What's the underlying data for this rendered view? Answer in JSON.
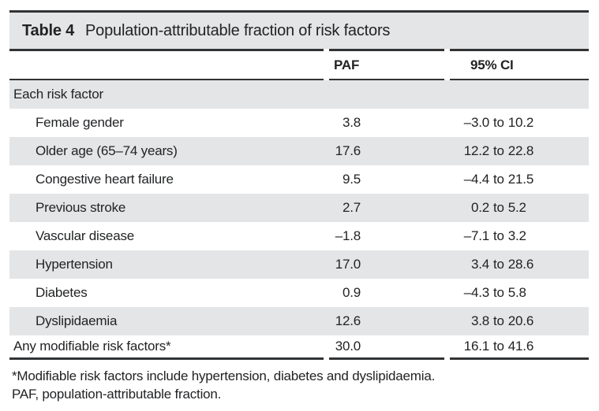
{
  "title": {
    "label": "Table 4",
    "caption": "Population-attributable fraction of risk factors"
  },
  "columns": {
    "paf": "PAF",
    "ci": "95% CI"
  },
  "ci_separator": "to",
  "rows": [
    {
      "label": "Each risk factor",
      "sub": false,
      "paf": "",
      "ci_lo": "",
      "ci_hi": ""
    },
    {
      "label": "Female gender",
      "sub": true,
      "paf": "3.8",
      "ci_lo": "–3.0",
      "ci_hi": "10.2"
    },
    {
      "label": "Older age (65–74 years)",
      "sub": true,
      "paf": "17.6",
      "ci_lo": "12.2",
      "ci_hi": "22.8"
    },
    {
      "label": "Congestive heart failure",
      "sub": true,
      "paf": "9.5",
      "ci_lo": "–4.4",
      "ci_hi": "21.5"
    },
    {
      "label": "Previous stroke",
      "sub": true,
      "paf": "2.7",
      "ci_lo": "0.2",
      "ci_hi": "5.2"
    },
    {
      "label": "Vascular disease",
      "sub": true,
      "paf": "–1.8",
      "ci_lo": "–7.1",
      "ci_hi": "3.2"
    },
    {
      "label": "Hypertension",
      "sub": true,
      "paf": "17.0",
      "ci_lo": "3.4",
      "ci_hi": "28.6"
    },
    {
      "label": "Diabetes",
      "sub": true,
      "paf": "0.9",
      "ci_lo": "–4.3",
      "ci_hi": "5.8"
    },
    {
      "label": "Dyslipidaemia",
      "sub": true,
      "paf": "12.6",
      "ci_lo": "3.8",
      "ci_hi": "20.6"
    },
    {
      "label": "Any modifiable risk factors*",
      "sub": false,
      "paf": "30.0",
      "ci_lo": "16.1",
      "ci_hi": "41.6"
    }
  ],
  "footnotes": [
    "*Modifiable risk factors include hypertension, diabetes and dyslipidaemia.",
    "PAF, population-attributable fraction."
  ],
  "colors": {
    "band_gray": "#e4e5e6",
    "rule_dark": "#313335",
    "text": "#222325"
  }
}
